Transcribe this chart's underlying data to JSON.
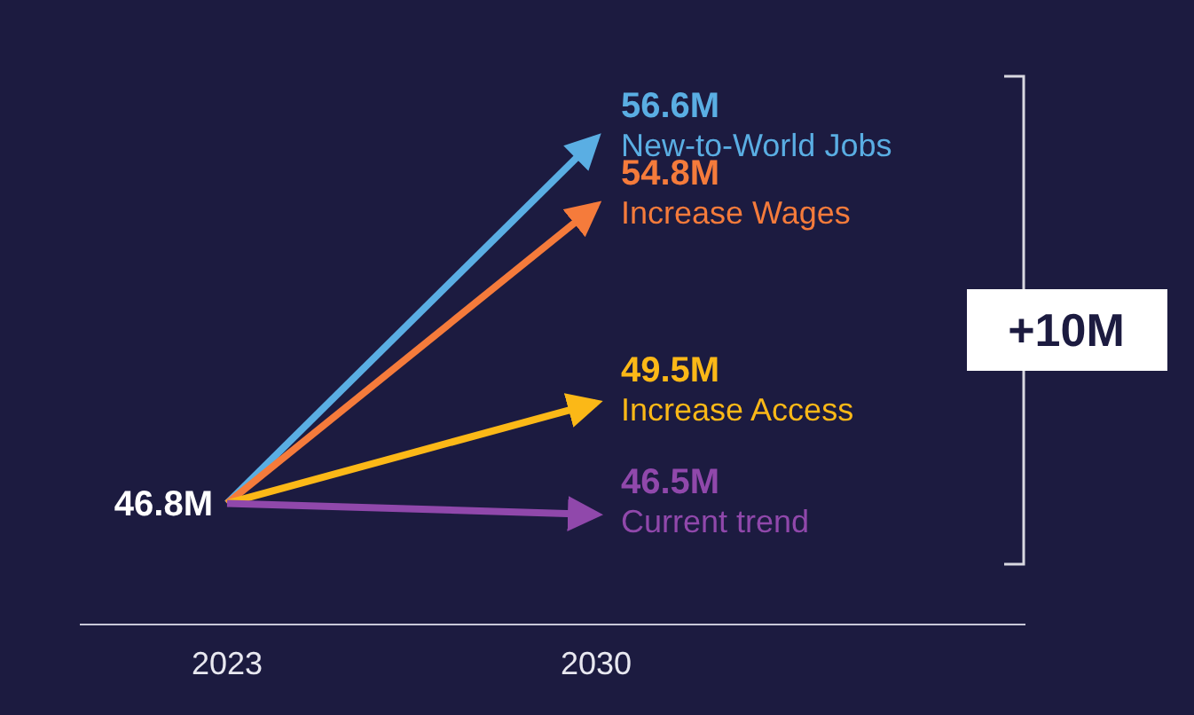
{
  "chart_data": {
    "type": "line",
    "categories": [
      "2023",
      "2030"
    ],
    "marker": "none",
    "line_style": "solid",
    "grid": false,
    "series": [
      {
        "name": "New-to-World Jobs",
        "color": "#5aaee3",
        "values": [
          46.8,
          56.6
        ],
        "value_labels": [
          "46.8M",
          "56.6M"
        ]
      },
      {
        "name": "Increase Wages",
        "color": "#f57b3b",
        "values": [
          46.8,
          54.8
        ],
        "value_labels": [
          null,
          "54.8M"
        ]
      },
      {
        "name": "Increase Access",
        "color": "#fbb817",
        "values": [
          46.8,
          49.5
        ],
        "value_labels": [
          null,
          "49.5M"
        ]
      },
      {
        "name": "Current trend",
        "color": "#9048ab",
        "values": [
          46.8,
          46.5
        ],
        "value_labels": [
          null,
          "46.5M"
        ]
      }
    ],
    "annotations": [
      "+10M"
    ]
  }
}
